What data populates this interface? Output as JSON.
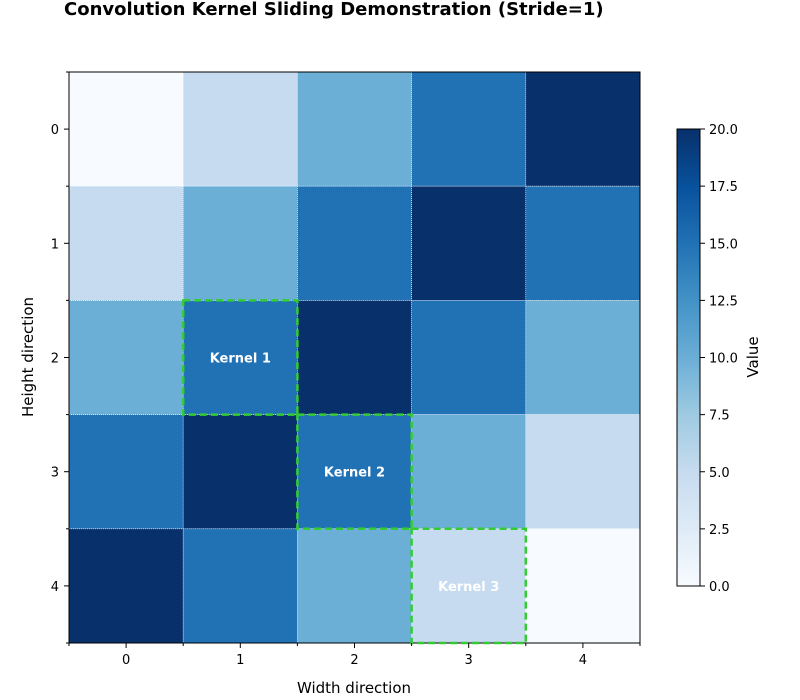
{
  "chart_data": {
    "type": "heatmap",
    "title": "Convolution Kernel Sliding Demonstration (Stride=1)",
    "xlabel": "Width direction",
    "ylabel": "Height direction",
    "x_ticks": [
      "0",
      "1",
      "2",
      "3",
      "4"
    ],
    "y_ticks": [
      "0",
      "1",
      "2",
      "3",
      "4"
    ],
    "values": [
      [
        0,
        5,
        10,
        15,
        20
      ],
      [
        5,
        10,
        15,
        20,
        15
      ],
      [
        10,
        15,
        20,
        15,
        10
      ],
      [
        15,
        20,
        15,
        10,
        5
      ],
      [
        20,
        15,
        10,
        5,
        0
      ]
    ],
    "colormap": "Blues",
    "vmin": 0,
    "vmax": 20,
    "colorbar": {
      "label": "Value",
      "ticks": [
        "0.0",
        "2.5",
        "5.0",
        "7.5",
        "10.0",
        "12.5",
        "15.0",
        "17.5",
        "20.0"
      ]
    },
    "kernels": [
      {
        "label": "Kernel 1",
        "row": 2,
        "col": 1
      },
      {
        "label": "Kernel 2",
        "row": 3,
        "col": 2
      },
      {
        "label": "Kernel 3",
        "row": 4,
        "col": 3
      }
    ],
    "kernel_color": "#33cc33"
  }
}
